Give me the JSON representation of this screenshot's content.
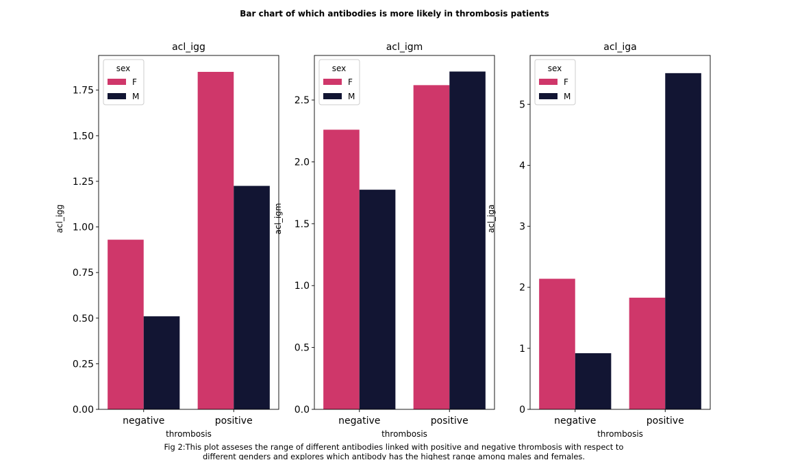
{
  "figure": {
    "title": "Bar chart of which antibodies is more likely in thrombosis patients",
    "caption_lines": [
      "Fig 2:This plot asseses the range of different antibodies linked with positive and negative thrombosis with respect to",
      "different genders and explores which antibody has the highest range among males and females."
    ]
  },
  "colors": {
    "F": "#cf376a",
    "M": "#121533"
  },
  "chart_data": [
    {
      "type": "bar",
      "title": "acl_igg",
      "xlabel": "thrombosis",
      "ylabel": "acl_igg",
      "categories": [
        "negative",
        "positive"
      ],
      "series": [
        {
          "name": "F",
          "values": [
            0.93,
            1.85
          ]
        },
        {
          "name": "M",
          "values": [
            0.51,
            1.225
          ]
        }
      ],
      "ylim": [
        0,
        1.94
      ],
      "yticks": [
        0.0,
        0.25,
        0.5,
        0.75,
        1.0,
        1.25,
        1.5,
        1.75
      ],
      "ytick_labels": [
        "0.00",
        "0.25",
        "0.50",
        "0.75",
        "1.00",
        "1.25",
        "1.50",
        "1.75"
      ],
      "legend": {
        "title": "sex",
        "entries": [
          "F",
          "M"
        ],
        "position": "upper-left"
      }
    },
    {
      "type": "bar",
      "title": "acl_igm",
      "xlabel": "thrombosis",
      "ylabel": "acl_igm",
      "categories": [
        "negative",
        "positive"
      ],
      "series": [
        {
          "name": "F",
          "values": [
            2.26,
            2.62
          ]
        },
        {
          "name": "M",
          "values": [
            1.775,
            2.73
          ]
        }
      ],
      "ylim": [
        0,
        2.86
      ],
      "yticks": [
        0.0,
        0.5,
        1.0,
        1.5,
        2.0,
        2.5
      ],
      "ytick_labels": [
        "0.0",
        "0.5",
        "1.0",
        "1.5",
        "2.0",
        "2.5"
      ],
      "legend": {
        "title": "sex",
        "entries": [
          "F",
          "M"
        ],
        "position": "upper-left"
      }
    },
    {
      "type": "bar",
      "title": "acl_iga",
      "xlabel": "thrombosis",
      "ylabel": "acl_iga",
      "categories": [
        "negative",
        "positive"
      ],
      "series": [
        {
          "name": "F",
          "values": [
            2.14,
            1.83
          ]
        },
        {
          "name": "M",
          "values": [
            0.92,
            5.51
          ]
        }
      ],
      "ylim": [
        0,
        5.8
      ],
      "yticks": [
        0,
        1,
        2,
        3,
        4,
        5
      ],
      "ytick_labels": [
        "0",
        "1",
        "2",
        "3",
        "4",
        "5"
      ],
      "legend": {
        "title": "sex",
        "entries": [
          "F",
          "M"
        ],
        "position": "upper-left"
      }
    }
  ]
}
